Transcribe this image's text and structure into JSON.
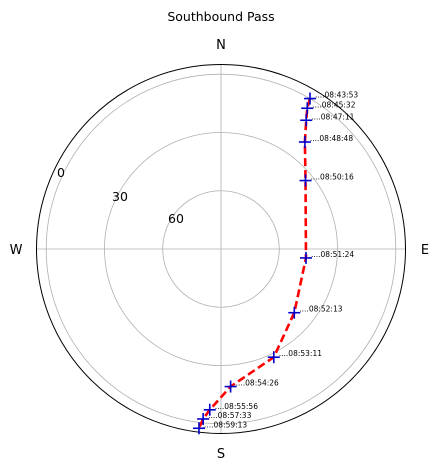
{
  "chart_data": {
    "type": "scatter",
    "projection": "polar",
    "title": "Southbound Pass",
    "theta_direction": "clockwise",
    "theta_zero": "north",
    "compass_labels": {
      "N": "N",
      "E": "E",
      "S": "S",
      "W": "W"
    },
    "radial_axis": {
      "quantity": "elevation (deg)",
      "reversed": true,
      "range": [
        90,
        -5
      ]
    },
    "radial_ticks": [
      {
        "value": 0,
        "label": "0"
      },
      {
        "value": 30,
        "label": "30"
      },
      {
        "value": 60,
        "label": "60"
      }
    ],
    "grid": true,
    "line_color": "#ff0000",
    "marker_color": "#0000cc",
    "points": [
      {
        "time": "08:43:53",
        "azimuth": 30.6,
        "elevation": 0.0
      },
      {
        "time": "08:45:32",
        "azimuth": 31.5,
        "elevation": 5.0
      },
      {
        "time": "08:47:11",
        "azimuth": 33.5,
        "elevation": 10.5
      },
      {
        "time": "08:48:48",
        "azimuth": 38.1,
        "elevation": 20.0
      },
      {
        "time": "08:50:16",
        "azimuth": 51.0,
        "elevation": 34.0
      },
      {
        "time": "08:51:24",
        "azimuth": 96.0,
        "elevation": 46.0
      },
      {
        "time": "08:52:13",
        "azimuth": 131.0,
        "elevation": 40.0
      },
      {
        "time": "08:53:11",
        "azimuth": 154.0,
        "elevation": 28.0
      },
      {
        "time": "08:54:26",
        "azimuth": 176.0,
        "elevation": 19.0
      },
      {
        "time": "08:55:56",
        "azimuth": 184.0,
        "elevation": 7.0
      },
      {
        "time": "08:57:33",
        "azimuth": 186.0,
        "elevation": 2.0
      },
      {
        "time": "08:59:13",
        "azimuth": 187.0,
        "elevation": -3.0
      }
    ]
  }
}
